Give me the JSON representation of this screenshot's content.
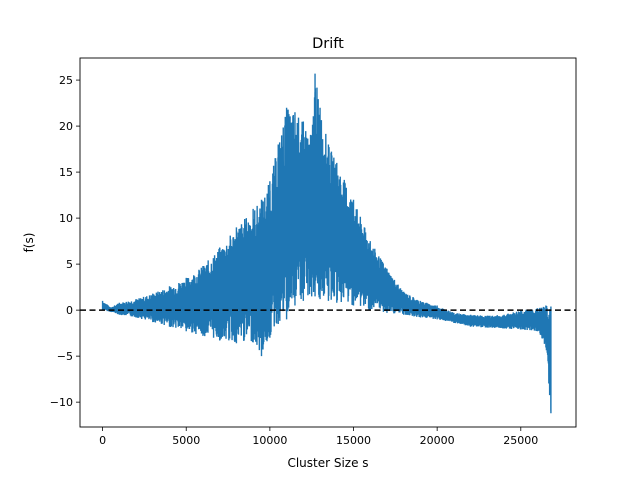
{
  "chart_data": {
    "type": "line",
    "title": "Drift",
    "xlabel": "Cluster Size s",
    "ylabel": "f(s)",
    "xlim": [
      -1350,
      28300
    ],
    "ylim": [
      -12.7,
      27.4
    ],
    "xticks": [
      0,
      5000,
      10000,
      15000,
      20000,
      25000
    ],
    "xtick_labels": [
      "0",
      "5000",
      "10000",
      "15000",
      "20000",
      "25000"
    ],
    "yticks": [
      -10,
      -5,
      0,
      5,
      10,
      15,
      20,
      25
    ],
    "ytick_labels": [
      "−10",
      "−5",
      "0",
      "5",
      "10",
      "15",
      "20",
      "25"
    ],
    "grid": false,
    "legend": "none",
    "series": [
      {
        "color": "#1f77b4",
        "style": "solid",
        "description_envelope": {
          "x": [
            0,
            500,
            1000,
            2000,
            3000,
            4000,
            5000,
            6000,
            7000,
            8000,
            9000,
            9500,
            10000,
            10500,
            11000,
            11500,
            12000,
            12500,
            12700,
            13000,
            13500,
            14000,
            15000,
            16000,
            17000,
            18000,
            19000,
            20000,
            21000,
            22000,
            23000,
            24000,
            25000,
            26000,
            26500,
            26800
          ],
          "upper": [
            1.0,
            0.3,
            0.8,
            1.2,
            1.8,
            2.6,
            3.5,
            4.8,
            6.8,
            9.0,
            11.0,
            12.0,
            14.0,
            18.0,
            22.0,
            21.5,
            20.5,
            19.0,
            25.7,
            22.0,
            18.0,
            16.0,
            12.0,
            7.5,
            4.5,
            2.0,
            1.0,
            0.5,
            -0.3,
            -0.5,
            -0.6,
            -0.5,
            0.0,
            0.2,
            0.5,
            0.4
          ],
          "lower": [
            0.0,
            -0.2,
            -0.5,
            -0.8,
            -1.3,
            -1.8,
            -2.3,
            -2.8,
            -3.3,
            -3.6,
            -3.5,
            -5.0,
            -3.0,
            -1.5,
            -1.0,
            0.5,
            1.0,
            1.5,
            1.5,
            1.2,
            1.0,
            0.8,
            0.5,
            0.0,
            -0.3,
            -0.5,
            -0.8,
            -1.0,
            -1.4,
            -1.8,
            -1.9,
            -2.0,
            -2.1,
            -2.3,
            -4.0,
            -11.2
          ]
        }
      },
      {
        "color": "#000000",
        "style": "dashed",
        "x": [
          -1350,
          28300
        ],
        "y": [
          0,
          0
        ]
      }
    ]
  }
}
